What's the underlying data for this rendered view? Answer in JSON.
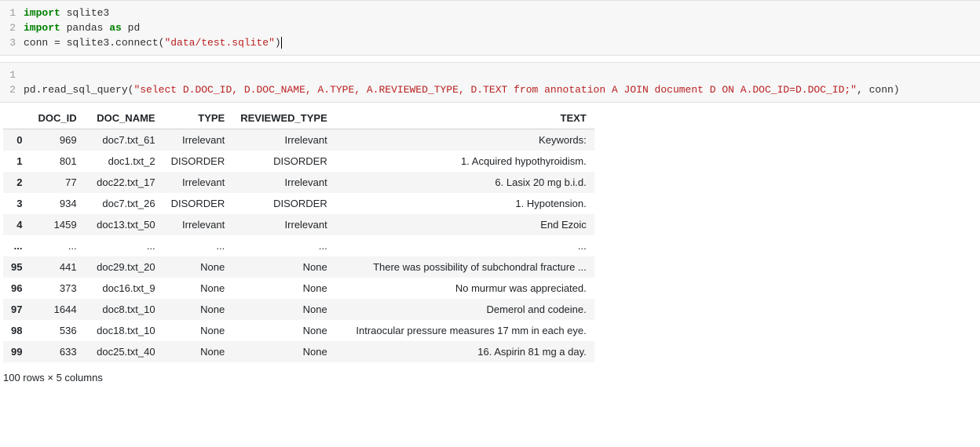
{
  "cells": [
    {
      "lines": [
        {
          "num": "1",
          "tokens": [
            {
              "t": "import",
              "c": "kw"
            },
            {
              "t": " sqlite3",
              "c": "nm"
            }
          ]
        },
        {
          "num": "2",
          "tokens": [
            {
              "t": "import",
              "c": "kw"
            },
            {
              "t": " pandas ",
              "c": "nm"
            },
            {
              "t": "as",
              "c": "kw"
            },
            {
              "t": " pd",
              "c": "nm"
            }
          ]
        },
        {
          "num": "3",
          "tokens": [
            {
              "t": "conn ",
              "c": "nm"
            },
            {
              "t": "=",
              "c": "nm"
            },
            {
              "t": " sqlite3.connect(",
              "c": "nm"
            },
            {
              "t": "\"data/test.sqlite\"",
              "c": "str"
            },
            {
              "t": ")",
              "c": "nm cursor"
            }
          ]
        }
      ]
    },
    {
      "lines": [
        {
          "num": "1",
          "tokens": [
            {
              "t": "",
              "c": "nm"
            }
          ]
        },
        {
          "num": "2",
          "tokens": [
            {
              "t": "pd.read_sql_query(",
              "c": "nm"
            },
            {
              "t": "\"select D.DOC_ID, D.DOC_NAME, A.TYPE, A.REVIEWED_TYPE, D.TEXT from annotation A JOIN document D ON A.DOC_ID=D.DOC_ID;\"",
              "c": "str"
            },
            {
              "t": ", conn)",
              "c": "nm"
            }
          ]
        }
      ]
    }
  ],
  "dataframe": {
    "columns": [
      "DOC_ID",
      "DOC_NAME",
      "TYPE",
      "REVIEWED_TYPE",
      "TEXT"
    ],
    "col_classes": [
      "col-docid",
      "col-docname",
      "col-type",
      "col-reviewed",
      "col-text"
    ],
    "rows": [
      {
        "idx": "0",
        "vals": [
          "969",
          "doc7.txt_61",
          "Irrelevant",
          "Irrelevant",
          "Keywords:"
        ]
      },
      {
        "idx": "1",
        "vals": [
          "801",
          "doc1.txt_2",
          "DISORDER",
          "DISORDER",
          "1. Acquired hypothyroidism."
        ]
      },
      {
        "idx": "2",
        "vals": [
          "77",
          "doc22.txt_17",
          "Irrelevant",
          "Irrelevant",
          "6. Lasix 20 mg b.i.d."
        ]
      },
      {
        "idx": "3",
        "vals": [
          "934",
          "doc7.txt_26",
          "DISORDER",
          "DISORDER",
          "1. Hypotension."
        ]
      },
      {
        "idx": "4",
        "vals": [
          "1459",
          "doc13.txt_50",
          "Irrelevant",
          "Irrelevant",
          "End Ezoic"
        ]
      },
      {
        "idx": "...",
        "vals": [
          "...",
          "...",
          "...",
          "...",
          "..."
        ]
      },
      {
        "idx": "95",
        "vals": [
          "441",
          "doc29.txt_20",
          "None",
          "None",
          "There was possibility of subchondral fracture ..."
        ]
      },
      {
        "idx": "96",
        "vals": [
          "373",
          "doc16.txt_9",
          "None",
          "None",
          "No murmur was appreciated."
        ]
      },
      {
        "idx": "97",
        "vals": [
          "1644",
          "doc8.txt_10",
          "None",
          "None",
          "Demerol and codeine."
        ]
      },
      {
        "idx": "98",
        "vals": [
          "536",
          "doc18.txt_10",
          "None",
          "None",
          "Intraocular pressure measures 17 mm in each eye."
        ]
      },
      {
        "idx": "99",
        "vals": [
          "633",
          "doc25.txt_40",
          "None",
          "None",
          "16. Aspirin 81 mg a day."
        ]
      }
    ],
    "summary": "100 rows × 5 columns"
  }
}
